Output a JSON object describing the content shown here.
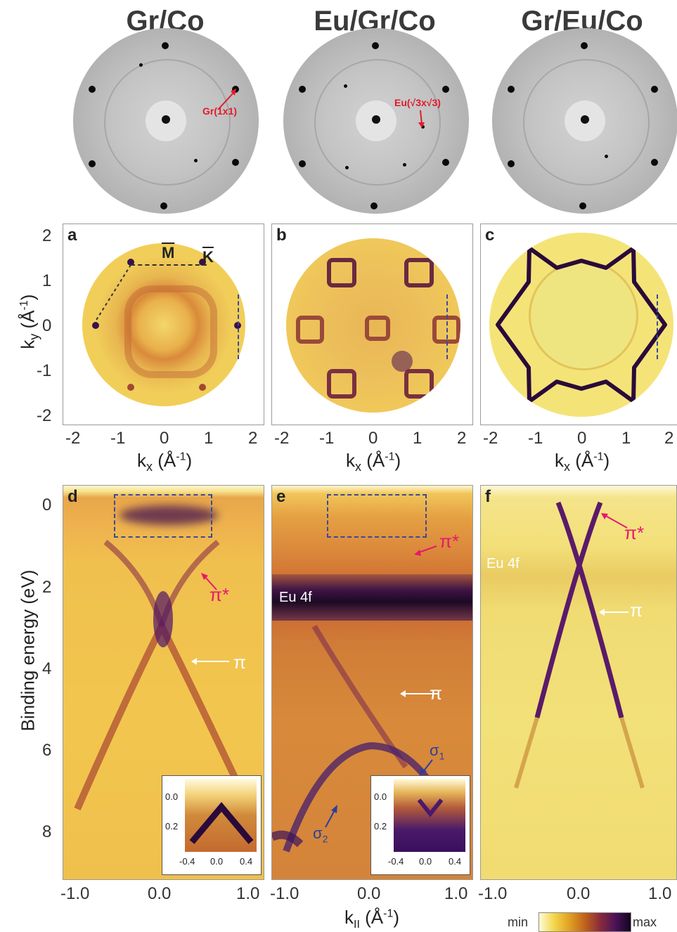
{
  "titles": [
    "Gr/Co",
    "Eu/Gr/Co",
    "Gr/Eu/Co"
  ],
  "leed_labels": {
    "gr": "Gr(1x1)",
    "eu": "Eu(√3x√3)"
  },
  "panel_letters": [
    "a",
    "b",
    "c",
    "d",
    "e",
    "f"
  ],
  "fermi_surface": {
    "ylabel_k": "k",
    "ylabel_sub": "y",
    "ylabel_unit": "(Å",
    "ylabel_exp": "-1",
    "ylabel_close": ")",
    "xlabel_k": "k",
    "xlabel_sub": "x",
    "xlabel_unit": "(Å",
    "xlabel_exp": "-1",
    "xlabel_close": ")",
    "y_ticks": [
      "2",
      "1",
      "0",
      "-1",
      "-2"
    ],
    "x_ticks": [
      "-2",
      "-1",
      "0",
      "1",
      "2"
    ],
    "M_label": "M",
    "K_label": "K"
  },
  "band_map": {
    "ylabel": "Binding energy (eV)",
    "y_ticks": [
      "0",
      "2",
      "4",
      "6",
      "8"
    ],
    "x_ticks_d": [
      "-1.0",
      "0.0",
      "1.0"
    ],
    "x_ticks_e": [
      "-1.0",
      "0.0",
      "1.0"
    ],
    "x_ticks_f": [
      "-1.0",
      "0.0",
      "1.0"
    ],
    "xlabel_k": "k",
    "xlabel_sub": "II",
    "xlabel_unit": "(Å",
    "xlabel_exp": "-1",
    "xlabel_close": ")",
    "pi_star": "π*",
    "pi": "π",
    "eu4f": "Eu 4f",
    "sigma1": "σ",
    "sigma1_sub": "1",
    "sigma2": "σ",
    "sigma2_sub": "2",
    "inset_y_ticks": [
      "0.0",
      "0.2"
    ],
    "inset_x_ticks": [
      "-0.4",
      "0.0",
      "0.4"
    ]
  },
  "colorbar": {
    "min": "min",
    "max": "max",
    "colors": [
      "#fffbd6",
      "#f3d54a",
      "#e0a023",
      "#c0621b",
      "#8a2a3b",
      "#4a1358",
      "#12051f"
    ]
  },
  "colors": {
    "magenta": "#e8186d",
    "red": "#e21a2c",
    "blue": "#2b3f9e"
  }
}
